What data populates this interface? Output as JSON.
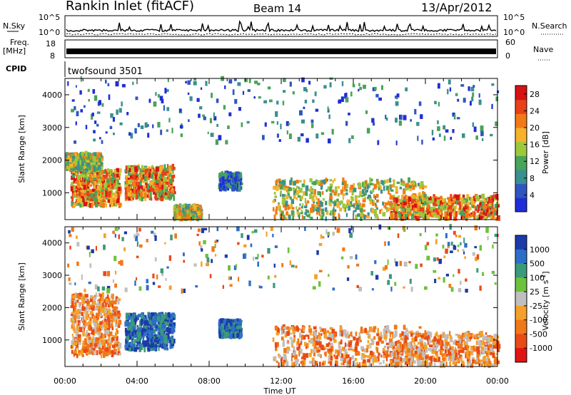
{
  "header": {
    "station": "Rankin Inlet (fitACF)",
    "beam": "Beam 14",
    "date": "13/Apr/2012"
  },
  "strip": {
    "nsky_label": "N.Sky",
    "nsky_ticks": [
      "10^5",
      "10^0"
    ],
    "nsearch_label": "N.Search",
    "nsearch_ticks": [
      "10^5",
      "10^0"
    ],
    "freq_label": "Freq.",
    "freq_unit": "[MHz]",
    "freq_ticks": [
      "18",
      "8"
    ],
    "nave_label": "Nave",
    "nave_ticks": [
      "60",
      "0"
    ],
    "cpid_label": "CPID",
    "cpid_value": "twofsound 3501"
  },
  "chart_data": [
    {
      "type": "heatmap",
      "quantity": "Power",
      "ylabel": "Slant Range [km]",
      "ylim": [
        180,
        4500
      ],
      "yticks": [
        1000,
        2000,
        3000,
        4000
      ],
      "xlabel": "",
      "xlim": [
        "00:00",
        "24:00"
      ],
      "colorbar": {
        "label": "Power [dB]",
        "ticks": [
          4,
          8,
          12,
          16,
          20,
          24,
          28
        ],
        "range": [
          0,
          30
        ],
        "colors": [
          "#1f2ed6",
          "#2f56c0",
          "#3a8f8f",
          "#49a35a",
          "#9cc83c",
          "#f5b22a",
          "#f27a16",
          "#e8401a",
          "#d71212"
        ]
      },
      "echo_regions": [
        {
          "t": [
            0.3,
            3.0
          ],
          "range": [
            600,
            1700
          ],
          "level": "high"
        },
        {
          "t": [
            0.0,
            2.0
          ],
          "range": [
            1700,
            2200
          ],
          "level": "medium"
        },
        {
          "t": [
            3.3,
            6.0
          ],
          "range": [
            800,
            1800
          ],
          "level": "high"
        },
        {
          "t": [
            6.0,
            7.5
          ],
          "range": [
            200,
            600
          ],
          "level": "medium"
        },
        {
          "t": [
            8.5,
            9.7
          ],
          "range": [
            1100,
            1600
          ],
          "level": "low"
        },
        {
          "t": [
            11.5,
            20.0
          ],
          "range": [
            200,
            1400
          ],
          "level": "medium"
        },
        {
          "t": [
            18.0,
            24.0
          ],
          "range": [
            200,
            900
          ],
          "level": "high"
        },
        {
          "t": [
            0.0,
            24.0
          ],
          "range": [
            2500,
            4500
          ],
          "level": "low"
        }
      ]
    },
    {
      "type": "heatmap",
      "quantity": "Velocity",
      "ylabel": "Slant Range [km]",
      "ylim": [
        180,
        4500
      ],
      "yticks": [
        1000,
        2000,
        3000,
        4000
      ],
      "xlabel": "Time UT",
      "xlim": [
        "00:00",
        "24:00"
      ],
      "xticks": [
        "00:00",
        "04:00",
        "08:00",
        "12:00",
        "16:00",
        "20:00",
        "00:00"
      ],
      "colorbar": {
        "label": "Velocity [m s",
        "label_sup": "-1",
        "label_end": "]",
        "ticks": [
          "1000",
          "500",
          "100",
          "25",
          "-25",
          "-100",
          "-500",
          "-1000"
        ],
        "colors": [
          "#1c3aa8",
          "#2d6ec8",
          "#3a9a7a",
          "#6cc23a",
          "#bfbfbf",
          "#f5a02a",
          "#f07818",
          "#ea4a16",
          "#e01414"
        ]
      },
      "echo_regions": [
        {
          "t": [
            0.3,
            3.0
          ],
          "range": [
            500,
            2400
          ],
          "level": "away"
        },
        {
          "t": [
            3.3,
            6.0
          ],
          "range": [
            700,
            1800
          ],
          "level": "toward"
        },
        {
          "t": [
            8.5,
            9.7
          ],
          "range": [
            1100,
            1600
          ],
          "level": "toward"
        },
        {
          "t": [
            11.5,
            20.0
          ],
          "range": [
            200,
            1400
          ],
          "level": "away"
        },
        {
          "t": [
            18.0,
            24.0
          ],
          "range": [
            200,
            1200
          ],
          "level": "away"
        },
        {
          "t": [
            0.0,
            24.0
          ],
          "range": [
            2500,
            4500
          ],
          "level": "mixed"
        }
      ]
    }
  ]
}
